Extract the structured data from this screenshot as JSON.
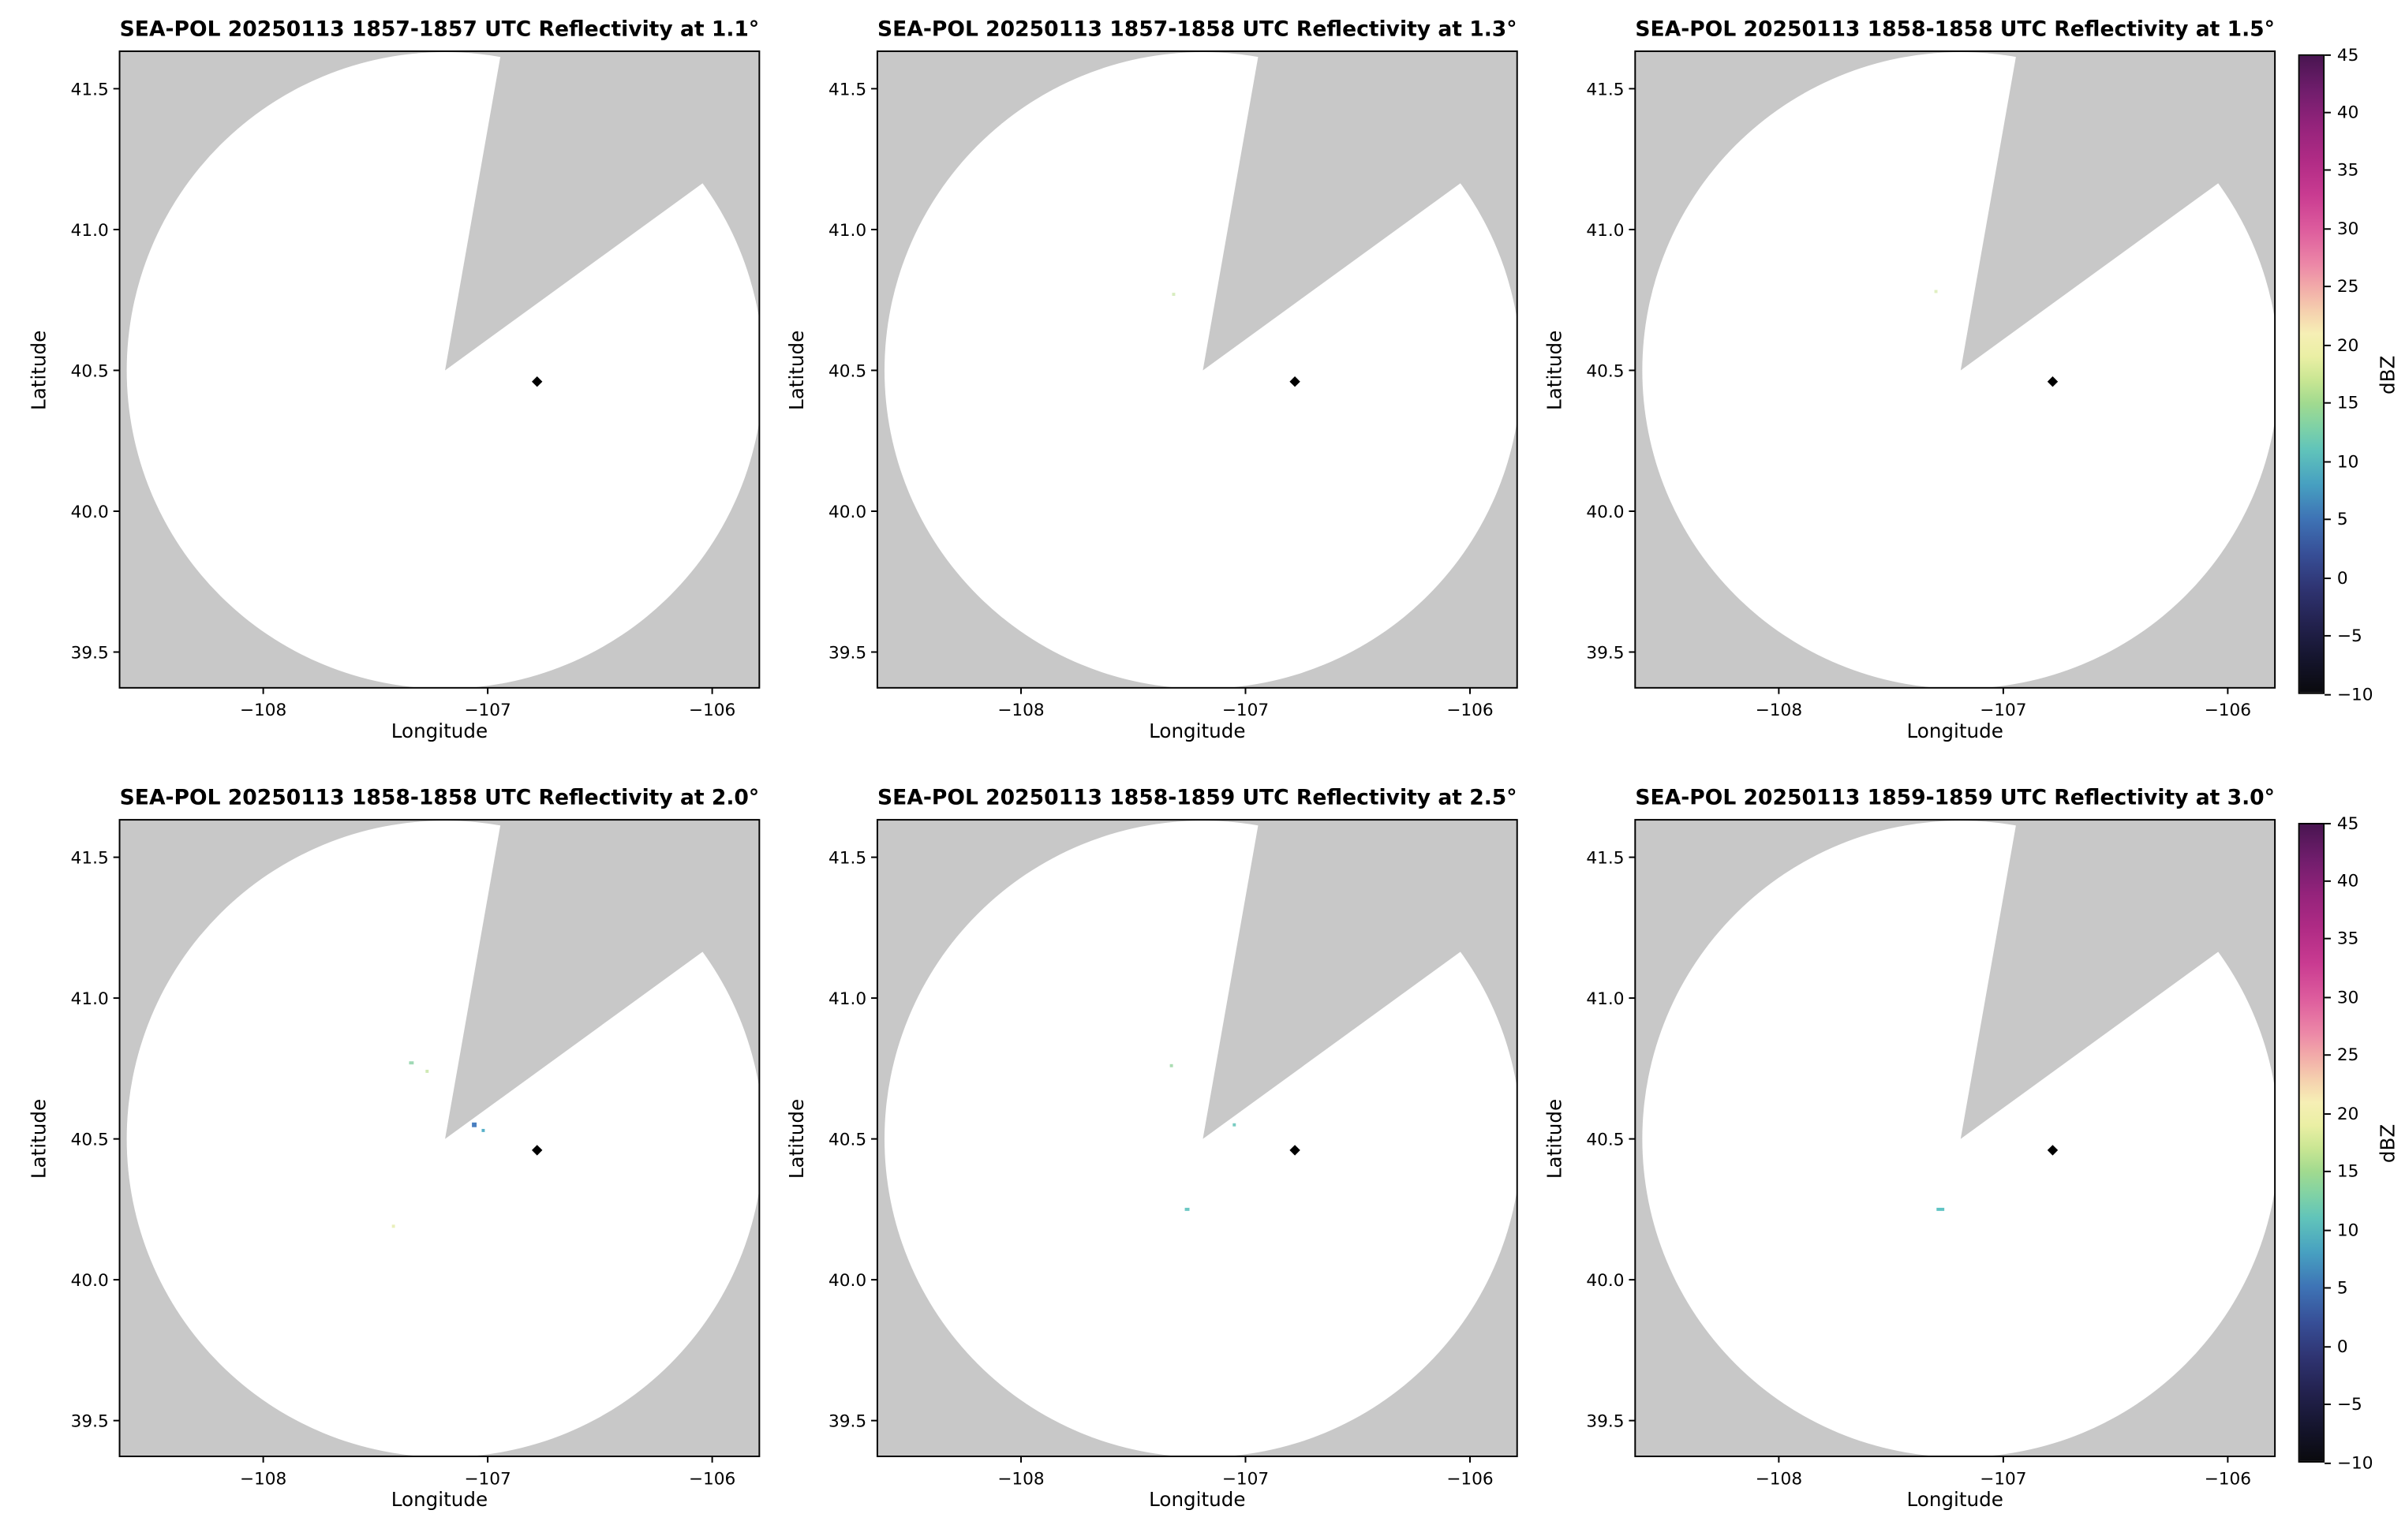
{
  "chart_data": {
    "type": "heatmap",
    "description": "Six-panel radar PPI reflectivity figure (2 rows x 3 columns). Each panel shows a mostly echo-free white radar coverage circle on a gray no-coverage background, with a gray blocked wedge sector toward the north-northeast and a small black diamond site marker. Almost no reflectivity echoes are present; only a few tiny low-dBZ specks appear in some sweeps.",
    "xlabel": "Longitude",
    "ylabel": "Latitude",
    "xlim": [
      -108.64,
      -105.79
    ],
    "ylim": [
      39.373,
      41.633
    ],
    "x_ticks": [
      -108,
      -107,
      -106
    ],
    "x_tick_labels": [
      "−108",
      "−107",
      "−106"
    ],
    "y_ticks": [
      41.5,
      41.0,
      40.5,
      40.0,
      39.5
    ],
    "y_tick_labels": [
      "41.5",
      "41.0",
      "40.5",
      "40.0",
      "39.5"
    ],
    "radar_center": {
      "lon": -107.19,
      "lat": 40.5
    },
    "coverage_radius_deg_lat": 1.13,
    "blocked_sector_az_deg": [
      10,
      54
    ],
    "site_marker": {
      "lon": -106.78,
      "lat": 40.46,
      "shape": "diamond",
      "color": "#000000"
    },
    "colors": {
      "no_coverage": "#c8c8c8",
      "coverage": "#ffffff",
      "panel_border": "#000000"
    },
    "panels": [
      {
        "title": "SEA-POL 20250113 1857-1857 UTC Reflectivity at 1.1°",
        "date": "20250113",
        "time_utc": "1857-1857",
        "elevation_deg": 1.1,
        "specks": []
      },
      {
        "title": "SEA-POL 20250113 1857-1858 UTC Reflectivity at 1.3°",
        "date": "20250113",
        "time_utc": "1857-1858",
        "elevation_deg": 1.3,
        "specks": [
          {
            "lon": -107.32,
            "lat": 40.77,
            "dbz": 16,
            "color": "#d8edc0",
            "w": 2,
            "h": 2
          }
        ]
      },
      {
        "title": "SEA-POL 20250113 1858-1858 UTC Reflectivity at 1.5°",
        "date": "20250113",
        "time_utc": "1858-1858",
        "elevation_deg": 1.5,
        "specks": [
          {
            "lon": -107.3,
            "lat": 40.78,
            "dbz": 17,
            "color": "#e0efc2",
            "w": 2,
            "h": 2
          }
        ]
      },
      {
        "title": "SEA-POL 20250113 1858-1858 UTC Reflectivity at 2.0°",
        "date": "20250113",
        "time_utc": "1858-1858",
        "elevation_deg": 2.0,
        "specks": [
          {
            "lon": -107.34,
            "lat": 40.77,
            "dbz": 13,
            "color": "#9fd9b5",
            "w": 3,
            "h": 2
          },
          {
            "lon": -107.27,
            "lat": 40.74,
            "dbz": 16,
            "color": "#cfe9b4",
            "w": 2,
            "h": 2
          },
          {
            "lon": -107.06,
            "lat": 40.55,
            "dbz": 5,
            "color": "#4a7fc0",
            "w": 3,
            "h": 3
          },
          {
            "lon": -107.02,
            "lat": 40.53,
            "dbz": 9,
            "color": "#57b0c8",
            "w": 2,
            "h": 2
          },
          {
            "lon": -107.42,
            "lat": 40.19,
            "dbz": 18,
            "color": "#e9f0bb",
            "w": 2,
            "h": 2
          }
        ]
      },
      {
        "title": "SEA-POL 20250113 1858-1859 UTC Reflectivity at 2.5°",
        "date": "20250113",
        "time_utc": "1858-1859",
        "elevation_deg": 2.5,
        "specks": [
          {
            "lon": -107.33,
            "lat": 40.76,
            "dbz": 14,
            "color": "#aadcb2",
            "w": 2,
            "h": 2
          },
          {
            "lon": -107.05,
            "lat": 40.55,
            "dbz": 10,
            "color": "#79ccc2",
            "w": 2,
            "h": 2
          },
          {
            "lon": -107.26,
            "lat": 40.25,
            "dbz": 10,
            "color": "#6cc8c4",
            "w": 3,
            "h": 2
          }
        ]
      },
      {
        "title": "SEA-POL 20250113 1859-1859 UTC Reflectivity at 3.0°",
        "date": "20250113",
        "time_utc": "1859-1859",
        "elevation_deg": 3.0,
        "specks": [
          {
            "lon": -107.28,
            "lat": 40.25,
            "dbz": 10,
            "color": "#5fc4c4",
            "w": 5,
            "h": 2
          }
        ]
      }
    ],
    "colorbar": {
      "label": "dBZ",
      "min": -10,
      "max": 45,
      "ticks": [
        -10,
        -5,
        0,
        5,
        10,
        15,
        20,
        25,
        30,
        35,
        40,
        45
      ],
      "tick_labels": [
        "−10",
        "−5",
        "0",
        "5",
        "10",
        "15",
        "20",
        "25",
        "30",
        "35",
        "40",
        "45"
      ],
      "stops": [
        {
          "v": -10,
          "c": "#0a0a0e"
        },
        {
          "v": -7,
          "c": "#15152e"
        },
        {
          "v": -4,
          "c": "#23224f"
        },
        {
          "v": -1,
          "c": "#2f3472"
        },
        {
          "v": 2,
          "c": "#374f97"
        },
        {
          "v": 5,
          "c": "#3e73b5"
        },
        {
          "v": 8,
          "c": "#47a0c1"
        },
        {
          "v": 11,
          "c": "#61c4ba"
        },
        {
          "v": 13,
          "c": "#80d2a5"
        },
        {
          "v": 15,
          "c": "#a1da8f"
        },
        {
          "v": 17,
          "c": "#c9e693"
        },
        {
          "v": 19,
          "c": "#eaefa4"
        },
        {
          "v": 21,
          "c": "#f6efb5"
        },
        {
          "v": 23,
          "c": "#f5cfae"
        },
        {
          "v": 25,
          "c": "#f2aba9"
        },
        {
          "v": 27,
          "c": "#ec87a7"
        },
        {
          "v": 30,
          "c": "#dd5c9d"
        },
        {
          "v": 33,
          "c": "#c93b91"
        },
        {
          "v": 36,
          "c": "#b02b85"
        },
        {
          "v": 39,
          "c": "#94237b"
        },
        {
          "v": 42,
          "c": "#701d6c"
        },
        {
          "v": 45,
          "c": "#491551"
        }
      ]
    }
  }
}
